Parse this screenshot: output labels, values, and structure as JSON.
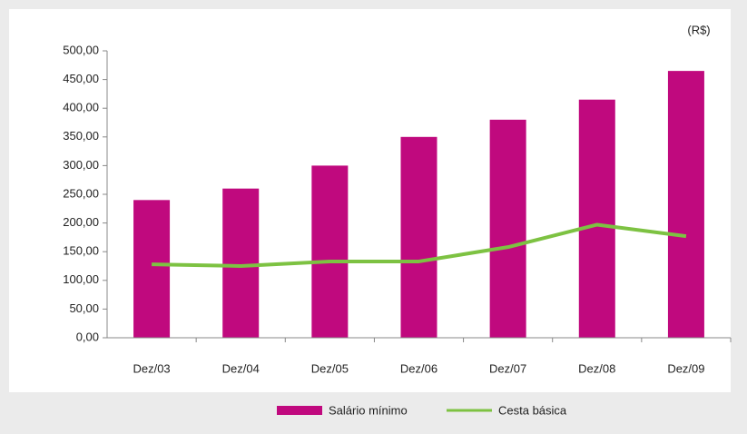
{
  "chart_data": {
    "type": "bar",
    "unit_label": "(R$)",
    "categories": [
      "Dez/03",
      "Dez/04",
      "Dez/05",
      "Dez/06",
      "Dez/07",
      "Dez/08",
      "Dez/09"
    ],
    "series": [
      {
        "name": "Salário mínimo",
        "type": "bar",
        "color": "#c0097e",
        "values": [
          240,
          260,
          300,
          350,
          380,
          415,
          465
        ]
      },
      {
        "name": "Cesta básica",
        "type": "line",
        "color": "#7dc242",
        "values": [
          128,
          125,
          133,
          133,
          158,
          197,
          177
        ]
      }
    ],
    "ylim": [
      0,
      500
    ],
    "yticks": [
      {
        "value": 0,
        "label": "0,00"
      },
      {
        "value": 50,
        "label": "50,00"
      },
      {
        "value": 100,
        "label": "100,00"
      },
      {
        "value": 150,
        "label": "150,00"
      },
      {
        "value": 200,
        "label": "200,00"
      },
      {
        "value": 250,
        "label": "250,00"
      },
      {
        "value": 300,
        "label": "300,00"
      },
      {
        "value": 350,
        "label": "350,00"
      },
      {
        "value": 400,
        "label": "400,00"
      },
      {
        "value": 450,
        "label": "450,00"
      },
      {
        "value": 500,
        "label": "500,00"
      }
    ],
    "legend": "bottom"
  }
}
